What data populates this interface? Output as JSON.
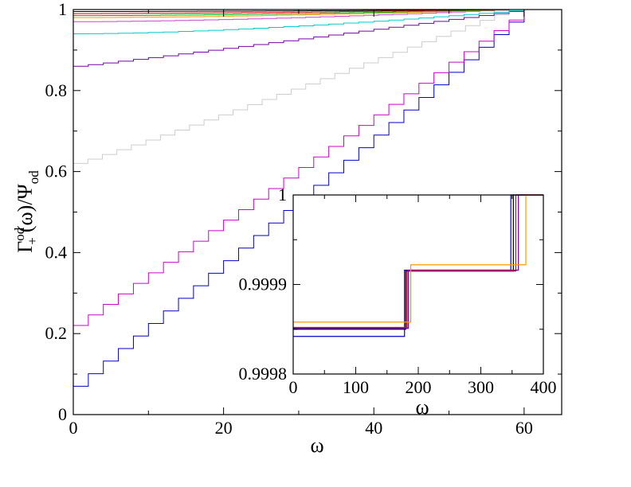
{
  "chart_data": [
    {
      "id": "main",
      "type": "line",
      "step": true,
      "title": "",
      "xlabel": "ω",
      "ylabel": "Γ+od(ω)/Ψod",
      "ylabel_parts": {
        "base": "Γ",
        "sub": "+",
        "sup": "od",
        "mid": "(ω)/Ψ",
        "sub2": "od"
      },
      "xlim": [
        0,
        65
      ],
      "ylim": [
        0,
        1
      ],
      "xticks": [
        0,
        20,
        40,
        60
      ],
      "xtick_labels": [
        "0",
        "20",
        "40",
        "60"
      ],
      "yticks": [
        0,
        0.2,
        0.4,
        0.6,
        0.8,
        1
      ],
      "ytick_labels": [
        "0",
        "0.2",
        "0.4",
        "0.6",
        "0.8",
        "1"
      ],
      "grid": false,
      "series": [
        {
          "name": "blue",
          "color": "#0000cc",
          "start": 0.07,
          "x_end": 60,
          "end": 1.0
        },
        {
          "name": "magenta",
          "color": "#cc00cc",
          "start": 0.22,
          "x_end": 60,
          "end": 1.0
        },
        {
          "name": "lightgray",
          "color": "#cccccc",
          "start": 0.62,
          "x_end": 58,
          "end": 1.0
        },
        {
          "name": "purple",
          "color": "#7700aa",
          "start": 0.86,
          "x_end": 60,
          "end": 1.0
        },
        {
          "name": "cyan",
          "color": "#00cccc",
          "start": 0.94,
          "x_end": 60,
          "end": 1.0
        },
        {
          "name": "violet",
          "color": "#cc44cc",
          "start": 0.97,
          "x_end": 58,
          "end": 1.0
        },
        {
          "name": "orange",
          "color": "#ff9900",
          "start": 0.98,
          "x_end": 58,
          "end": 1.0
        },
        {
          "name": "green",
          "color": "#00aa00",
          "start": 0.985,
          "x_end": 58,
          "end": 1.0
        },
        {
          "name": "red",
          "color": "#dd0000",
          "start": 0.99,
          "x_end": 56,
          "end": 1.0
        },
        {
          "name": "black",
          "color": "#000000",
          "start": 0.995,
          "x_end": 55,
          "end": 1.0
        }
      ]
    },
    {
      "id": "inset",
      "type": "line",
      "step": true,
      "title": "",
      "xlabel": "ω",
      "ylabel": "",
      "xlim": [
        0,
        400
      ],
      "ylim": [
        0.9998,
        1
      ],
      "xticks": [
        0,
        100,
        200,
        300,
        400
      ],
      "xtick_labels": [
        "0",
        "100",
        "200",
        "300",
        "400"
      ],
      "yticks": [
        0.9998,
        0.9999,
        1
      ],
      "ytick_labels": [
        "0.9998",
        "0.9999",
        "1"
      ],
      "grid": false,
      "series": [
        {
          "name": "blue",
          "color": "#0000cc",
          "levels": [
            0.999842,
            0.999916,
            1.0
          ],
          "steps": [
            178,
            348
          ]
        },
        {
          "name": "black",
          "color": "#000000",
          "levels": [
            0.99985,
            0.999915,
            1.0
          ],
          "steps": [
            180,
            352
          ]
        },
        {
          "name": "red",
          "color": "#dd0000",
          "levels": [
            0.999852,
            0.999915,
            1.0
          ],
          "steps": [
            182,
            356
          ]
        },
        {
          "name": "purple",
          "color": "#7700aa",
          "levels": [
            0.999851,
            0.999916,
            1.0
          ],
          "steps": [
            184,
            360
          ]
        },
        {
          "name": "orange",
          "color": "#ff9900",
          "levels": [
            0.999858,
            0.999922,
            1.0
          ],
          "steps": [
            188,
            372
          ]
        }
      ]
    }
  ]
}
